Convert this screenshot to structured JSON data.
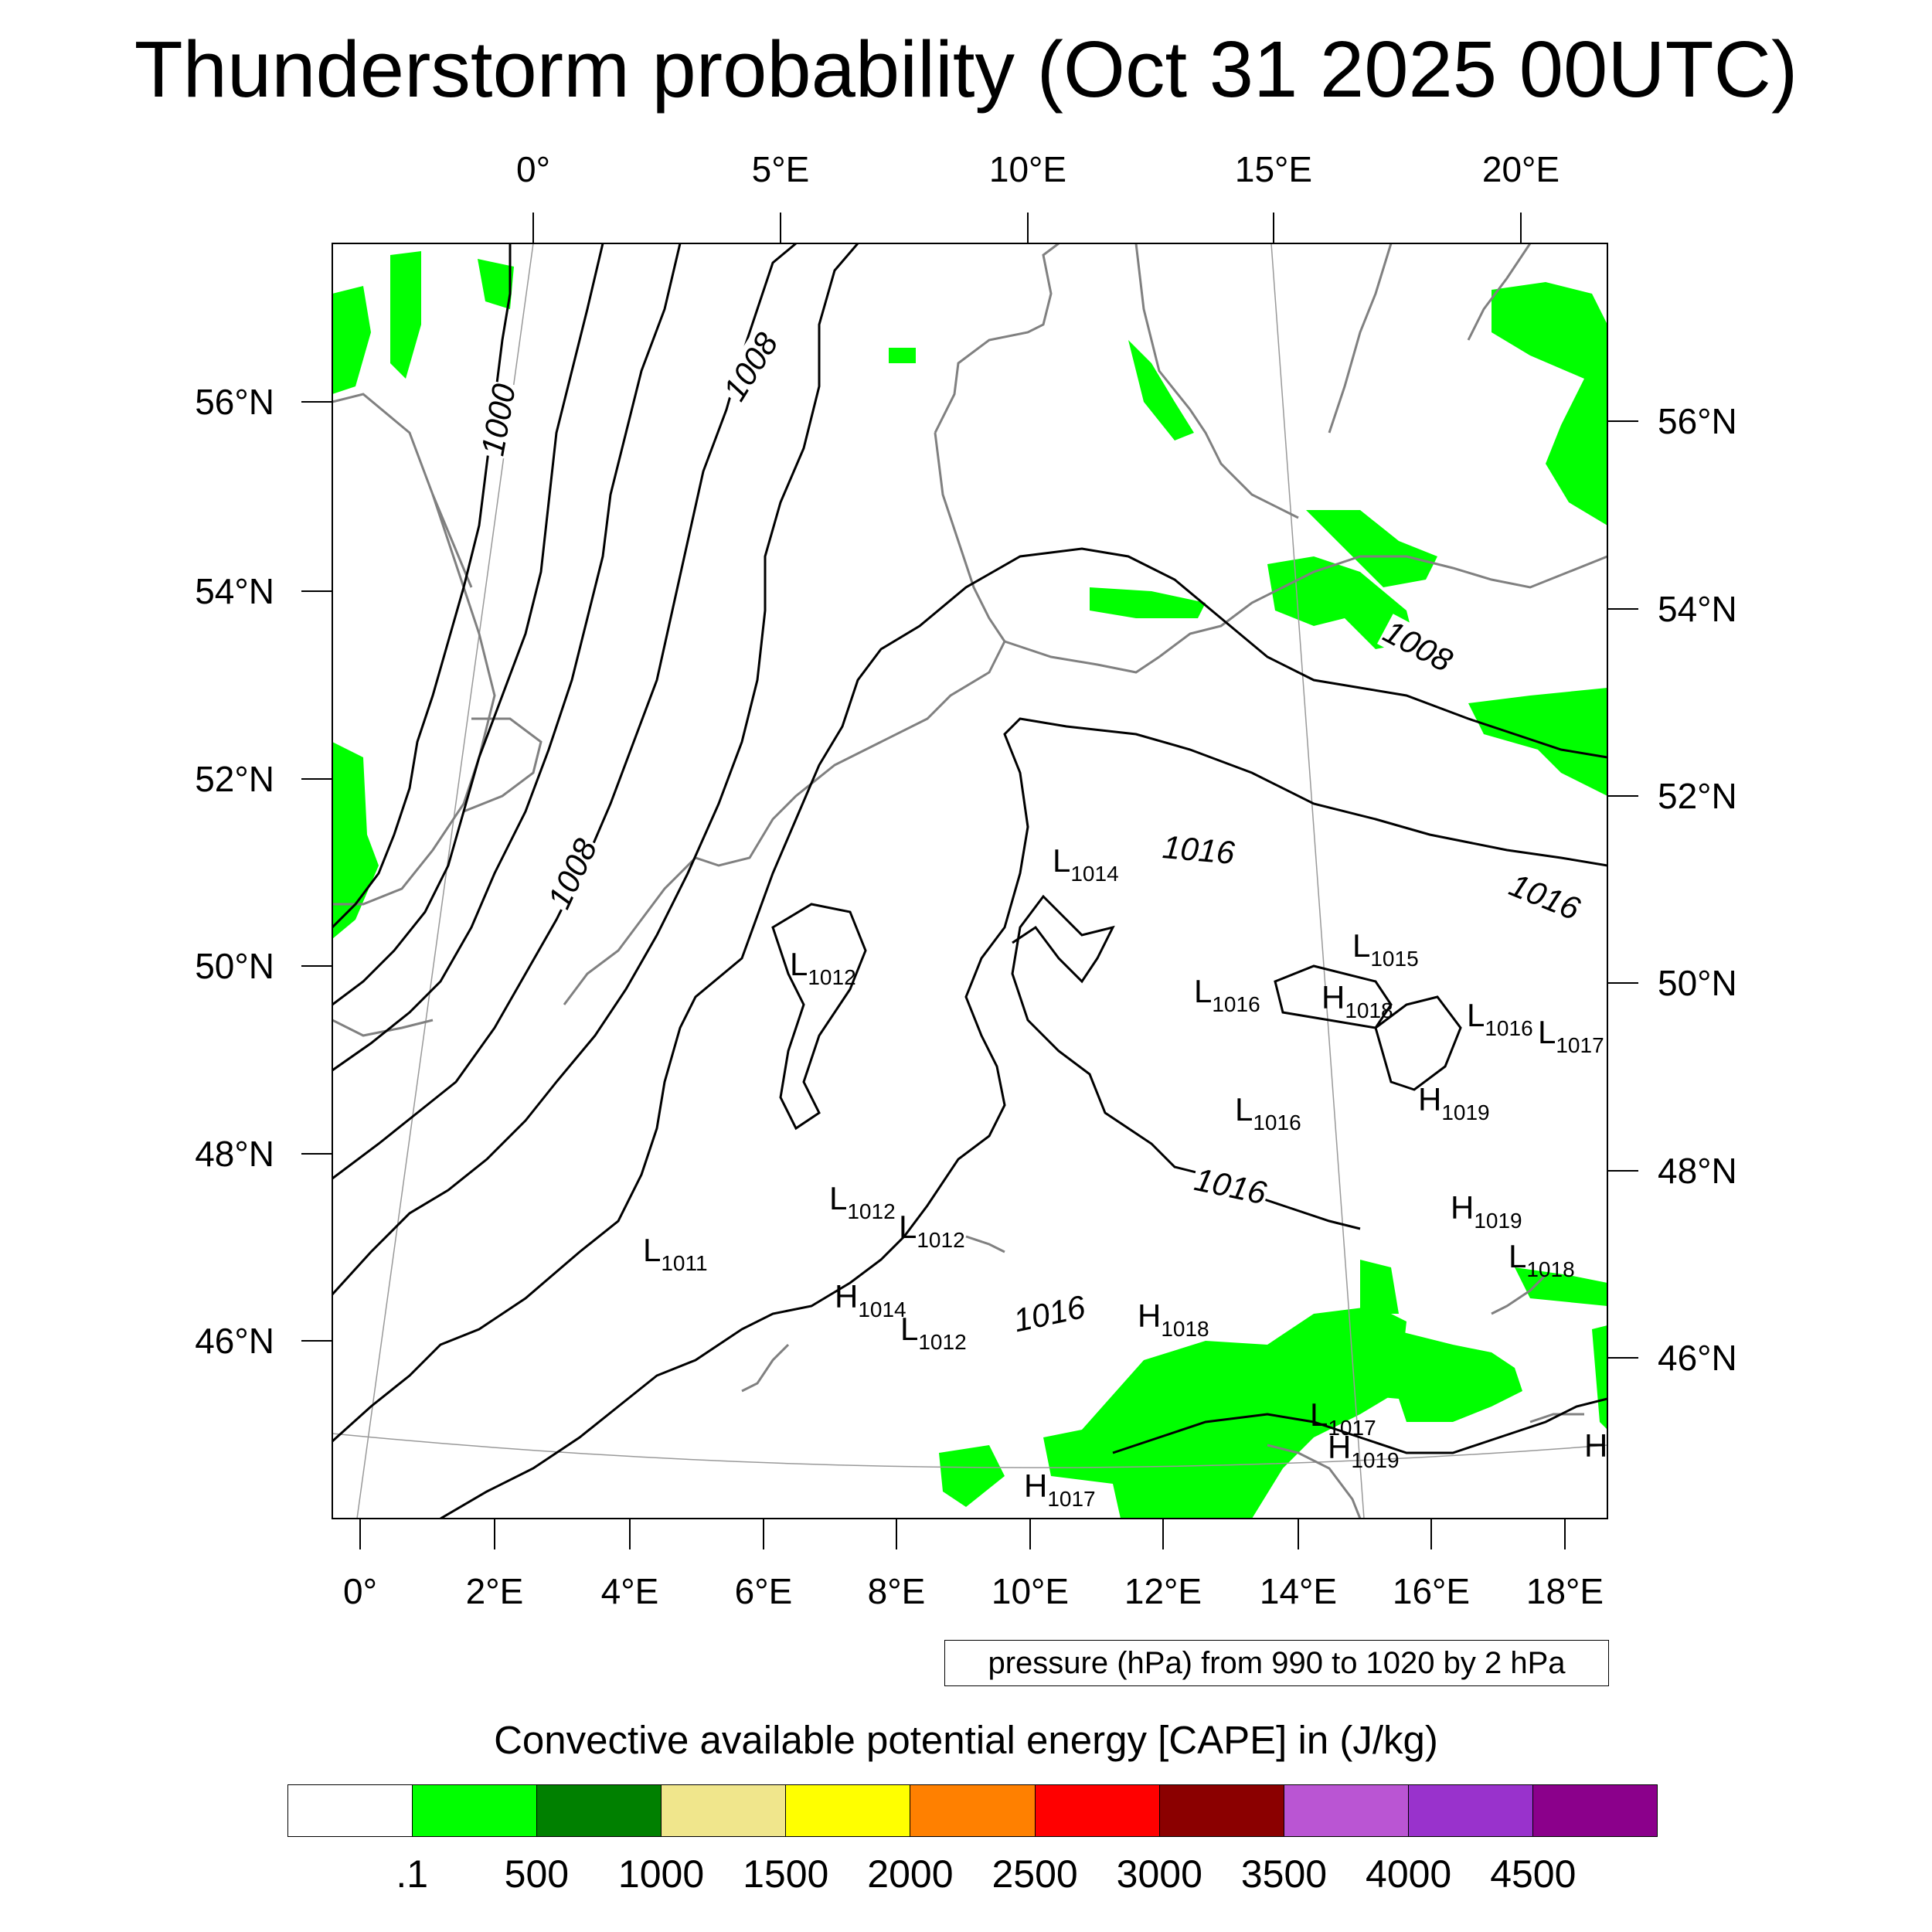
{
  "title": "Thunderstorm probability (Oct 31 2025 00UTC)",
  "map": {
    "top_longitude_labels": [
      "0°",
      "5°E",
      "10°E",
      "15°E",
      "20°E"
    ],
    "bottom_longitude_labels": [
      "0°",
      "2°E",
      "4°E",
      "6°E",
      "8°E",
      "10°E",
      "12°E",
      "14°E",
      "16°E",
      "18°E"
    ],
    "left_latitude_labels": [
      "56°N",
      "54°N",
      "52°N",
      "50°N",
      "48°N",
      "46°N"
    ],
    "right_latitude_labels": [
      "56°N",
      "54°N",
      "52°N",
      "50°N",
      "48°N",
      "46°N"
    ],
    "contour_labels": [
      "1000",
      "1008",
      "1008",
      "1008",
      "1016",
      "1016",
      "1016",
      "1016"
    ],
    "pressure_centers": [
      {
        "type": "L",
        "value": "1014"
      },
      {
        "type": "L",
        "value": "1015"
      },
      {
        "type": "L",
        "value": "1012"
      },
      {
        "type": "L",
        "value": "1016"
      },
      {
        "type": "H",
        "value": "1018"
      },
      {
        "type": "L",
        "value": "1016"
      },
      {
        "type": "L",
        "value": "1017"
      },
      {
        "type": "L",
        "value": "1016"
      },
      {
        "type": "H",
        "value": "1019"
      },
      {
        "type": "L",
        "value": "1012"
      },
      {
        "type": "L",
        "value": "1012"
      },
      {
        "type": "H",
        "value": "1019"
      },
      {
        "type": "L",
        "value": "1011"
      },
      {
        "type": "L",
        "value": "1018"
      },
      {
        "type": "H",
        "value": "1014"
      },
      {
        "type": "L",
        "value": "1012"
      },
      {
        "type": "H",
        "value": "1018"
      },
      {
        "type": "L",
        "value": "1017"
      },
      {
        "type": "H",
        "value": "1019"
      },
      {
        "type": "H",
        "value": "1017"
      },
      {
        "type": "H",
        "value": ""
      }
    ],
    "colors": {
      "contour": "#000000",
      "coastline": "#808080",
      "cape_fill": "#00ff00"
    }
  },
  "pressure_legend": "pressure (hPa) from 990 to 1020 by 2 hPa",
  "colorbar": {
    "title": "Convective available potential energy [CAPE] in (J/kg)",
    "colors": [
      "#ffffff",
      "#00ff00",
      "#008000",
      "#f0e68c",
      "#ffff00",
      "#ff8000",
      "#ff0000",
      "#8b0000",
      "#ba55d3",
      "#9932cc",
      "#8b008b"
    ],
    "labels": [
      ".1",
      "500",
      "1000",
      "1500",
      "2000",
      "2500",
      "3000",
      "3500",
      "4000",
      "4500"
    ]
  }
}
